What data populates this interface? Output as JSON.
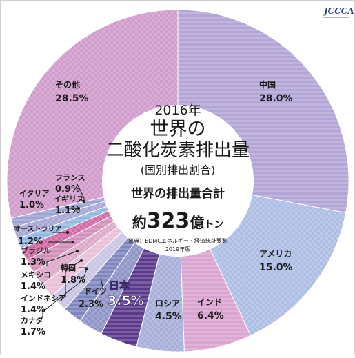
{
  "logo": {
    "text": "JCCCA"
  },
  "center": {
    "year": "2016年",
    "title_line1": "世界の",
    "title_line2": "二酸化炭素排出量",
    "subtitle": "(国別排出割合)",
    "total_label": "世界の排出量合計",
    "total_prefix": "約",
    "total_value": "323",
    "total_unit_oku": "億",
    "total_unit_ton": "トン",
    "source_line1": "出典）EDMCエネルギー・経済統計要覧",
    "source_line2": "2019年版"
  },
  "colors": {
    "china": "#b3a5d6",
    "usa": "#aebde4",
    "india": "#d9a4cf",
    "russia": "#a7afd9",
    "japan": "#5b3a8c",
    "germany": "#8f94c6",
    "korea": "#7f86bd",
    "canada": "#c9c4e4",
    "indonesia": "#e9bfd8",
    "mexico": "#dca9c8",
    "brazil": "#cf8fb8",
    "australia": "#d16aa6",
    "italy": "#8fb9e2",
    "uk": "#a9a6d4",
    "france": "#9aa3d2",
    "other": "#d19ccb"
  },
  "chart_data": {
    "type": "pie",
    "title": "世界の二酸化炭素排出量",
    "subtitle": "(国別排出割合)",
    "unit": "%",
    "slices": [
      {
        "name": "中国",
        "value": 28.0,
        "label": "28.0%"
      },
      {
        "name": "アメリカ",
        "value": 15.0,
        "label": "15.0%"
      },
      {
        "name": "インド",
        "value": 6.4,
        "label": "6.4%"
      },
      {
        "name": "ロシア",
        "value": 4.5,
        "label": "4.5%"
      },
      {
        "name": "日本",
        "value": 3.5,
        "label": "3.5%"
      },
      {
        "name": "ドイツ",
        "value": 2.3,
        "label": "2.3%"
      },
      {
        "name": "韓国",
        "value": 1.8,
        "label": "1.8%"
      },
      {
        "name": "カナダ",
        "value": 1.7,
        "label": "1.7%"
      },
      {
        "name": "インドネシア",
        "value": 1.4,
        "label": "1.4%"
      },
      {
        "name": "メキシコ",
        "value": 1.4,
        "label": "1.4%"
      },
      {
        "name": "ブラジル",
        "value": 1.3,
        "label": "1.3%"
      },
      {
        "name": "オーストラリア",
        "value": 1.2,
        "label": "1.2%"
      },
      {
        "name": "イタリア",
        "value": 1.0,
        "label": "1.0%"
      },
      {
        "name": "イギリス",
        "value": 1.1,
        "label": "1.1%"
      },
      {
        "name": "フランス",
        "value": 0.9,
        "label": "0.9%"
      },
      {
        "name": "その他",
        "value": 28.5,
        "label": "28.5%"
      }
    ]
  }
}
